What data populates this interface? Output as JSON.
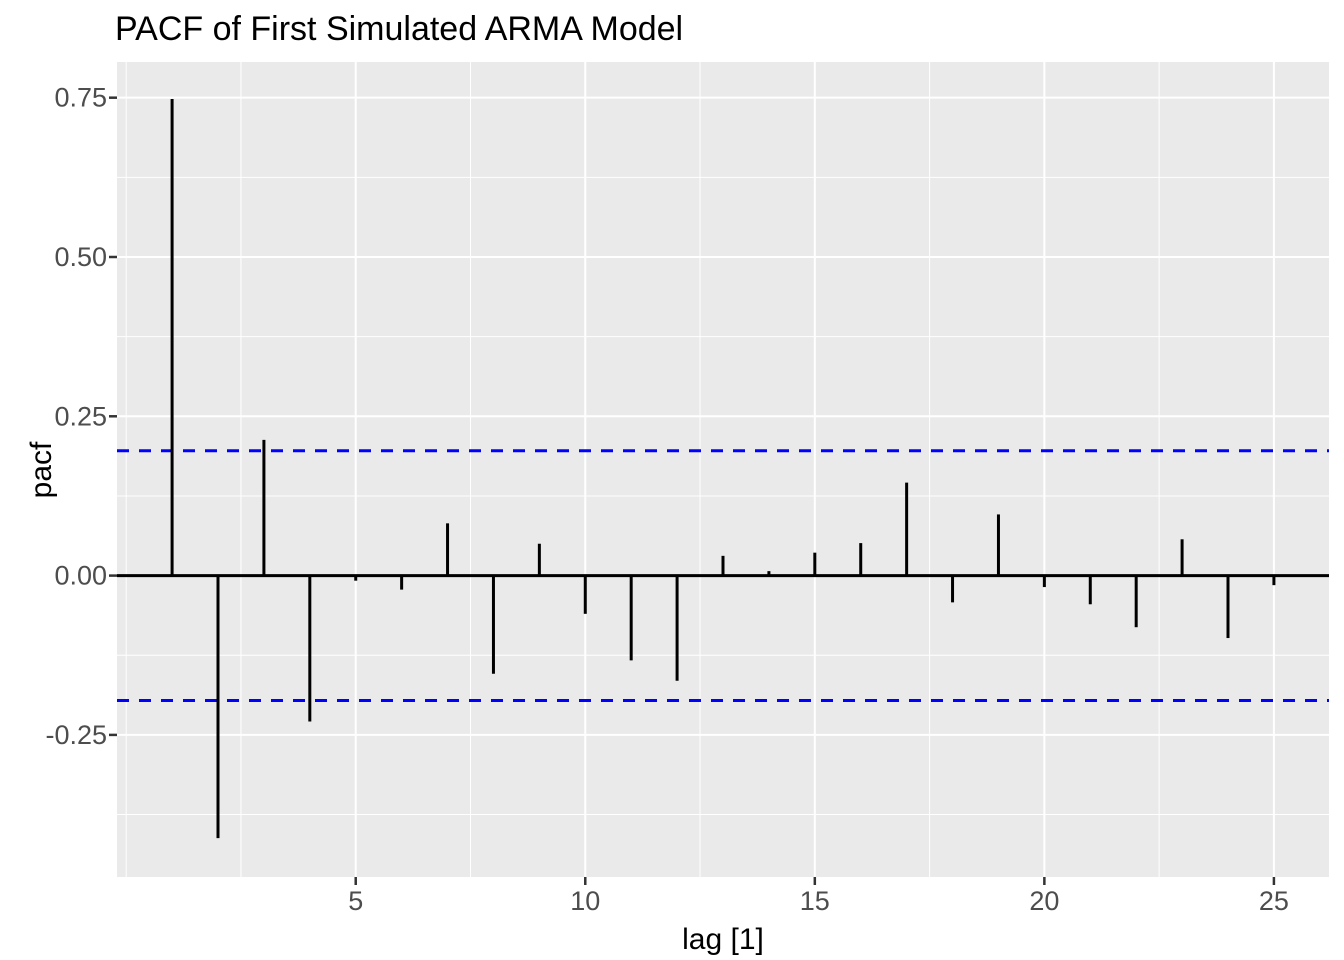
{
  "chart_data": {
    "type": "bar",
    "subtype": "pacf-spike-plot",
    "title": "PACF of First Simulated ARMA Model",
    "xlabel": "lag [1]",
    "ylabel": "pacf",
    "x": [
      1,
      2,
      3,
      4,
      5,
      6,
      7,
      8,
      9,
      10,
      11,
      12,
      13,
      14,
      15,
      16,
      17,
      18,
      19,
      20,
      21,
      22,
      23,
      24,
      25
    ],
    "values": [
      0.748,
      -0.412,
      0.213,
      -0.229,
      -0.008,
      -0.022,
      0.082,
      -0.154,
      0.05,
      -0.06,
      -0.133,
      -0.165,
      0.031,
      0.007,
      0.036,
      0.051,
      0.146,
      -0.042,
      0.096,
      -0.018,
      -0.045,
      -0.081,
      0.057,
      -0.098,
      -0.015
    ],
    "confidence_bounds": [
      0.196,
      -0.196
    ],
    "confidence_line_style": "dashed",
    "xlim": [
      -0.2,
      26.2
    ],
    "ylim": [
      -0.473,
      0.806
    ],
    "x_major_ticks": [
      5,
      10,
      15,
      20,
      25
    ],
    "x_tick_labels": [
      "5",
      "10",
      "15",
      "20",
      "25"
    ],
    "x_minor_ticks": [
      0,
      2.5,
      7.5,
      12.5,
      17.5,
      22.5
    ],
    "y_major_ticks": [
      -0.25,
      0,
      0.25,
      0.5,
      0.75
    ],
    "y_tick_labels": [
      "-0.25",
      "0.00",
      "0.25",
      "0.50",
      "0.75"
    ],
    "y_minor_ticks": [
      -0.375,
      -0.125,
      0.125,
      0.375,
      0.625
    ],
    "grid": true,
    "legend_position": "none",
    "colors": {
      "panel_background": "#EAEAEA",
      "grid_major": "#FFFFFF",
      "grid_minor": "#FFFFFF",
      "spike": "#000000",
      "zero_line": "#000000",
      "confidence_line": "#0000FF",
      "tick_mark": "#333333",
      "tick_label": "#4D4D4D",
      "title": "#000000",
      "axis_title": "#000000"
    }
  }
}
